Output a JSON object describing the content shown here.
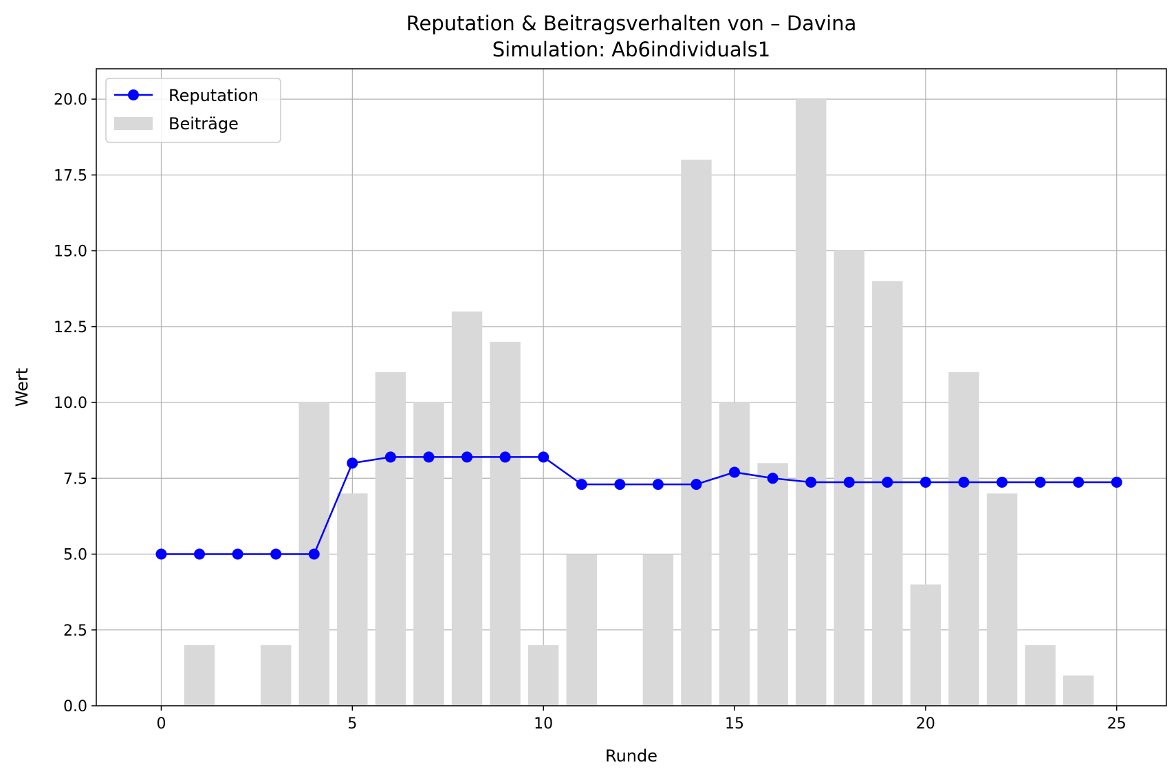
{
  "chart_data": {
    "type": "bar+line",
    "title": "Reputation & Beitragsverhalten von – Davina",
    "subtitle": "Simulation: Ab6individuals1",
    "xlabel": "Runde",
    "ylabel": "Wert",
    "xlim": [
      -1.7,
      26.3
    ],
    "ylim": [
      0,
      21
    ],
    "x_ticks": [
      0,
      5,
      10,
      15,
      20,
      25
    ],
    "y_ticks": [
      0,
      2.5,
      5,
      7.5,
      10,
      12.5,
      15,
      17.5,
      20
    ],
    "y_tick_labels": [
      "0.0",
      "2.5",
      "5.0",
      "7.5",
      "10.0",
      "12.5",
      "15.0",
      "17.5",
      "20.0"
    ],
    "grid": true,
    "legend_position": "top-left",
    "x": [
      0,
      1,
      2,
      3,
      4,
      5,
      6,
      7,
      8,
      9,
      10,
      11,
      12,
      13,
      14,
      15,
      16,
      17,
      18,
      19,
      20,
      21,
      22,
      23,
      24,
      25
    ],
    "series": [
      {
        "name": "Reputation",
        "kind": "line",
        "marker": "circle",
        "color": "#0000ff",
        "values": [
          5.0,
          5.0,
          5.0,
          5.0,
          5.0,
          8.0,
          8.2,
          8.2,
          8.2,
          8.2,
          8.2,
          7.3,
          7.3,
          7.3,
          7.3,
          7.7,
          7.5,
          7.37,
          7.37,
          7.37,
          7.37,
          7.37,
          7.37,
          7.37,
          7.37,
          7.37
        ]
      },
      {
        "name": "Beiträge",
        "kind": "bar",
        "color": "#d9d9d9",
        "values": [
          0,
          2,
          0,
          2,
          10,
          7,
          11,
          10,
          13,
          12,
          2,
          5,
          0,
          5,
          18,
          10,
          8,
          20,
          15,
          14,
          4,
          11,
          7,
          2,
          1,
          0
        ]
      }
    ]
  }
}
